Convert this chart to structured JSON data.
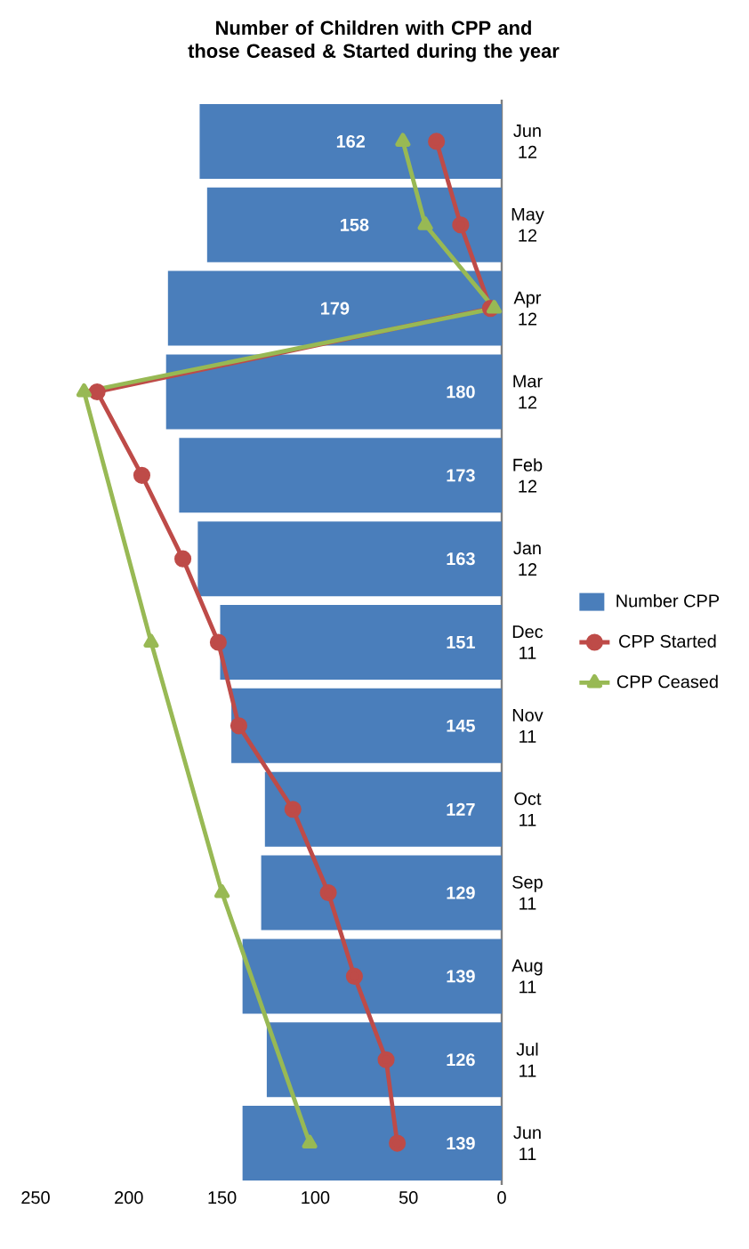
{
  "chart_data": {
    "type": "bar",
    "orientation": "horizontal",
    "title": "Number of Children with CPP and those Ceased & Started during the year",
    "categories": [
      "Jun 12",
      "May 12",
      "Apr 12",
      "Mar 12",
      "Feb 12",
      "Jan 12",
      "Dec 11",
      "Nov 11",
      "Oct 11",
      "Sep 11",
      "Aug 11",
      "Jul 11",
      "Jun 11"
    ],
    "series": [
      {
        "name": "Number CPP",
        "color": "#4a7ebb",
        "values": [
          162,
          158,
          179,
          180,
          173,
          163,
          151,
          145,
          127,
          129,
          139,
          126,
          139
        ],
        "value_labels": [
          "162",
          "158",
          "179",
          "180",
          "173",
          "163",
          "151",
          "145",
          "127",
          "129",
          "139",
          "126",
          "139"
        ]
      },
      {
        "name": "CPP Started",
        "type": "line",
        "color": "#be4b48",
        "marker": "circle",
        "values": [
          35,
          22,
          6,
          217,
          193,
          171,
          152,
          141,
          112,
          93,
          79,
          62,
          56
        ]
      },
      {
        "name": "CPP Ceased",
        "type": "line",
        "color": "#98b954",
        "marker": "triangle",
        "values": [
          53,
          41,
          4,
          224,
          null,
          null,
          188,
          null,
          null,
          150,
          null,
          null,
          103
        ]
      }
    ],
    "xlim": [
      250,
      0
    ],
    "xticks": [
      0,
      50,
      100,
      150,
      200,
      250
    ],
    "legend": "right",
    "line_style": "solid"
  }
}
